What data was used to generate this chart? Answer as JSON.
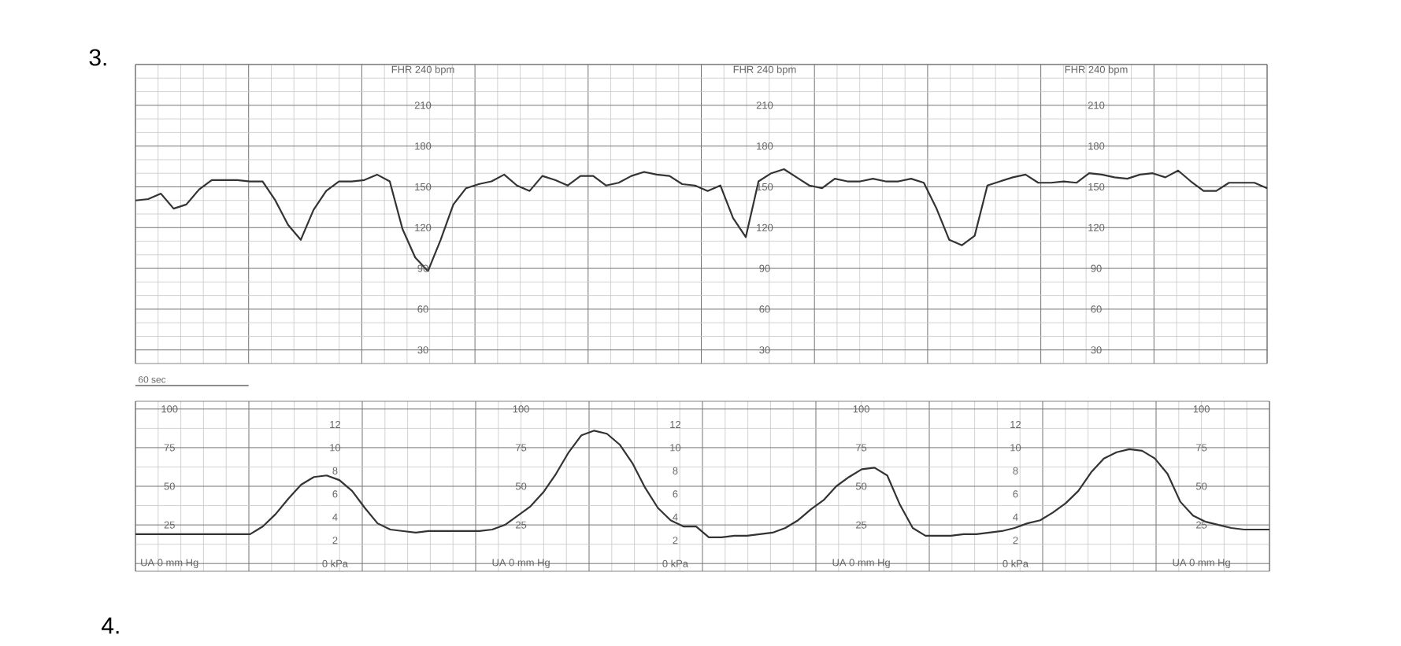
{
  "chart_data": [
    {
      "type": "line",
      "categories": [
        null,
        null,
        null,
        null,
        null,
        null,
        null,
        null,
        null,
        null,
        null,
        null,
        null,
        null,
        null,
        null,
        null,
        null,
        null,
        null,
        null,
        null,
        null,
        null,
        null,
        null,
        null,
        null,
        null,
        null,
        null,
        null,
        null,
        null,
        null,
        null,
        null,
        null,
        null,
        null,
        null,
        null,
        null,
        null,
        null,
        null,
        null,
        null,
        null,
        null,
        null,
        null,
        null,
        null,
        null,
        null,
        null,
        null,
        null,
        null,
        null,
        null,
        null,
        null,
        null,
        null,
        null,
        null,
        null,
        null,
        null,
        null,
        null,
        null,
        null,
        null,
        null,
        null,
        null,
        null,
        null,
        null,
        null,
        null,
        null,
        null,
        null,
        null,
        null,
        null
      ],
      "values": [
        140,
        141,
        145,
        134,
        137,
        148,
        155,
        155,
        155,
        154,
        154,
        140,
        122,
        111,
        133,
        147,
        154,
        154,
        155,
        159,
        154,
        119,
        98,
        88,
        111,
        137,
        149,
        152,
        154,
        159,
        151,
        147,
        158,
        155,
        151,
        158,
        158,
        151,
        153,
        158,
        161,
        159,
        158,
        152,
        151,
        147,
        151,
        127,
        113,
        154,
        160,
        163,
        157,
        151,
        149,
        156,
        154,
        154,
        156,
        154,
        154,
        156,
        153,
        134,
        111,
        107,
        114,
        151,
        154,
        157,
        159,
        153,
        153,
        154,
        153,
        160,
        159,
        157,
        156,
        159,
        160,
        157,
        162,
        154,
        147,
        147,
        153,
        153,
        153,
        149
      ],
      "color": "#333333",
      "ylim": [
        20,
        240
      ],
      "yticks": [
        30,
        60,
        90,
        120,
        150,
        180,
        210,
        {
          "value": 240,
          "label": "FHR 240 bpm"
        }
      ],
      "y2lim": [
        20,
        240
      ],
      "y2ticks": [
        30,
        60,
        90,
        120,
        150,
        180,
        210,
        {
          "value": 240,
          "label": "FHR 240 bpm"
        }
      ],
      "y3lim": [
        20,
        240
      ],
      "y3ticks": [
        30,
        60,
        90,
        120,
        150,
        180,
        210,
        {
          "value": 240,
          "label": "FHR 240 bpm"
        }
      ],
      "grid": true,
      "annotations": [
        "3.",
        "60 sec"
      ]
    },
    {
      "type": "line",
      "categories": [
        null,
        null,
        null,
        null,
        null,
        null,
        null,
        null,
        null,
        null,
        null,
        null,
        null,
        null,
        null,
        null,
        null,
        null,
        null,
        null,
        null,
        null,
        null,
        null,
        null,
        null,
        null,
        null,
        null,
        null,
        null,
        null,
        null,
        null,
        null,
        null,
        null,
        null,
        null,
        null,
        null,
        null,
        null,
        null,
        null,
        null,
        null,
        null,
        null,
        null,
        null,
        null,
        null,
        null,
        null,
        null,
        null,
        null,
        null,
        null,
        null,
        null,
        null,
        null,
        null,
        null,
        null,
        null,
        null,
        null,
        null,
        null,
        null,
        null,
        null,
        null,
        null,
        null,
        null,
        null,
        null,
        null,
        null,
        null,
        null,
        null,
        null,
        null,
        null,
        null
      ],
      "values": [
        19,
        19,
        19,
        19,
        19,
        19,
        19,
        19,
        19,
        19,
        24,
        32,
        42,
        51,
        56,
        57,
        54,
        47,
        36,
        26,
        22,
        21,
        20,
        21,
        21,
        21,
        21,
        21,
        22,
        25,
        31,
        37,
        46,
        58,
        72,
        83,
        86,
        84,
        77,
        65,
        49,
        36,
        28,
        24,
        24,
        17,
        17,
        18,
        18,
        19,
        20,
        23,
        28,
        35,
        41,
        50,
        56,
        61,
        62,
        57,
        38,
        23,
        18,
        18,
        18,
        19,
        19,
        20,
        21,
        23,
        26,
        28,
        33,
        39,
        47,
        59,
        68,
        72,
        74,
        73,
        68,
        58,
        40,
        31,
        27,
        25,
        23,
        22,
        22,
        22
      ],
      "color": "#333333",
      "ylim": [
        -5,
        105
      ],
      "yticks": [
        {
          "value": 0,
          "label": "UA 0 mm Hg"
        },
        25,
        50,
        75,
        100
      ],
      "y2lim": [
        -0.67,
        14
      ],
      "y2ticks": [
        {
          "value": 0,
          "label": "0 kPa"
        },
        2,
        4,
        6,
        8,
        10,
        12
      ],
      "y3lim": [
        -5,
        105
      ],
      "y3ticks": [
        {
          "value": 0,
          "label": "UA 0 mm Hg"
        },
        25,
        50,
        75,
        100
      ],
      "grid": true,
      "annotations": [
        "4.",
        "0 kPa",
        "2",
        "4",
        "6",
        "8",
        "10",
        "12",
        "UA 0 mm Hg",
        "25",
        "50",
        "75",
        "100",
        "0 kPa",
        "2",
        "4",
        "6",
        "8",
        "10",
        "12",
        "UA 0 mm Hg",
        "25",
        "50",
        "75",
        "100"
      ]
    }
  ]
}
